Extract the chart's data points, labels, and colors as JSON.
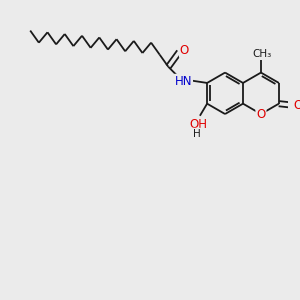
{
  "bg_color": "#ebebeb",
  "bond_color": "#1a1a1a",
  "bond_width": 1.3,
  "atom_colors": {
    "O": "#e00000",
    "N": "#0000cc",
    "C": "#1a1a1a"
  },
  "font_size": 8.5,
  "fig_size": [
    3.0,
    3.0
  ],
  "dpi": 100,
  "xlim": [
    0,
    10
  ],
  "ylim": [
    0,
    10
  ]
}
